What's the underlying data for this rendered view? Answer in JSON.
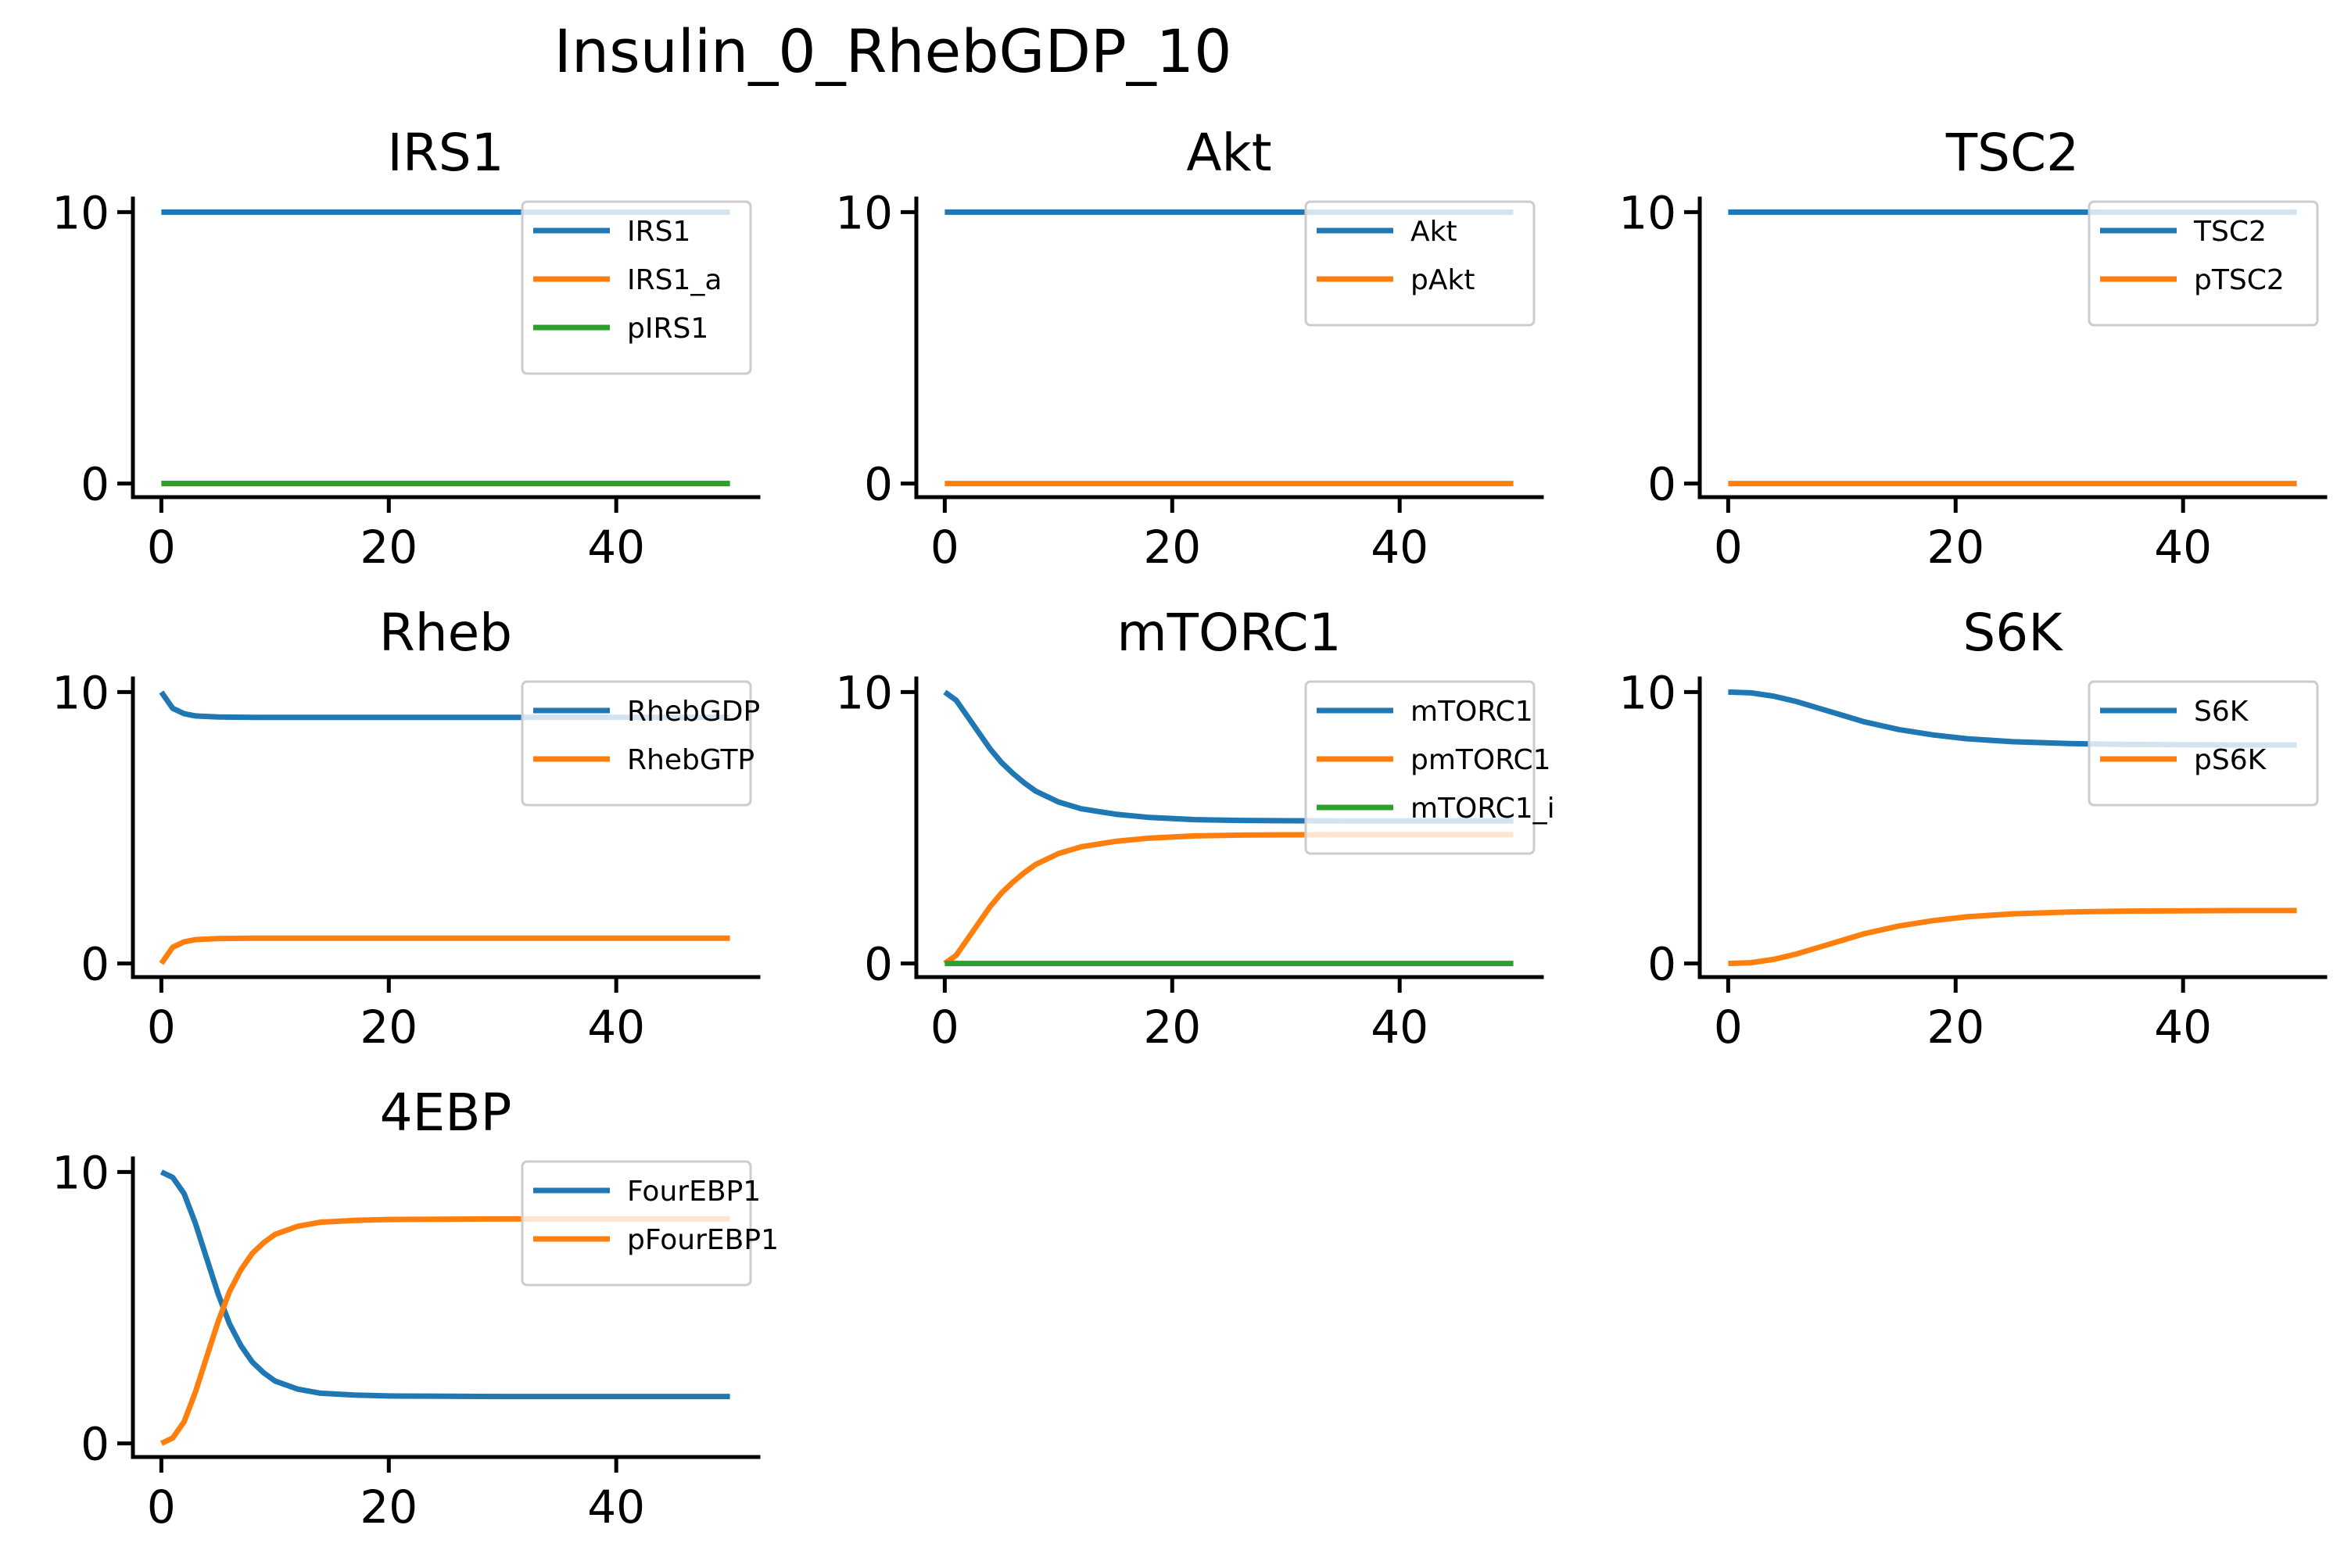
{
  "figure": {
    "title": "Insulin_0_RhebGDP_10"
  },
  "colors": {
    "blue": "#1f77b4",
    "orange": "#ff7f0e",
    "green": "#2ca02c"
  },
  "chart_data": [
    {
      "type": "line",
      "title": "IRS1",
      "xlim": [
        -2.5,
        52.5
      ],
      "ylim": [
        -0.5,
        10.5
      ],
      "xticks": [
        0,
        20,
        40
      ],
      "yticks": [
        0,
        10
      ],
      "legend_position": "upper right",
      "series": [
        {
          "name": "IRS1",
          "color": "#1f77b4",
          "x": [
            0,
            50
          ],
          "y": [
            10,
            10
          ]
        },
        {
          "name": "IRS1_a",
          "color": "#ff7f0e",
          "x": [
            0,
            50
          ],
          "y": [
            0,
            0
          ]
        },
        {
          "name": "pIRS1",
          "color": "#2ca02c",
          "x": [
            0,
            50
          ],
          "y": [
            0,
            0
          ]
        }
      ]
    },
    {
      "type": "line",
      "title": "Akt",
      "xlim": [
        -2.5,
        52.5
      ],
      "ylim": [
        -0.5,
        10.5
      ],
      "xticks": [
        0,
        20,
        40
      ],
      "yticks": [
        0,
        10
      ],
      "legend_position": "upper right",
      "series": [
        {
          "name": "Akt",
          "color": "#1f77b4",
          "x": [
            0,
            50
          ],
          "y": [
            10,
            10
          ]
        },
        {
          "name": "pAkt",
          "color": "#ff7f0e",
          "x": [
            0,
            50
          ],
          "y": [
            0,
            0
          ]
        }
      ]
    },
    {
      "type": "line",
      "title": "TSC2",
      "xlim": [
        -2.5,
        52.5
      ],
      "ylim": [
        -0.5,
        10.5
      ],
      "xticks": [
        0,
        20,
        40
      ],
      "yticks": [
        0,
        10
      ],
      "legend_position": "upper right",
      "series": [
        {
          "name": "TSC2",
          "color": "#1f77b4",
          "x": [
            0,
            50
          ],
          "y": [
            10,
            10
          ]
        },
        {
          "name": "pTSC2",
          "color": "#ff7f0e",
          "x": [
            0,
            50
          ],
          "y": [
            0,
            0
          ]
        }
      ]
    },
    {
      "type": "line",
      "title": "Rheb",
      "xlim": [
        -2.5,
        52.5
      ],
      "ylim": [
        -0.5,
        10.5
      ],
      "xticks": [
        0,
        20,
        40
      ],
      "yticks": [
        0,
        10
      ],
      "legend_position": "upper right",
      "series": [
        {
          "name": "RhebGDP",
          "color": "#1f77b4",
          "x": [
            0,
            1,
            2,
            3,
            5,
            8,
            50
          ],
          "y": [
            10,
            9.4,
            9.2,
            9.12,
            9.08,
            9.07,
            9.07
          ]
        },
        {
          "name": "RhebGTP",
          "color": "#ff7f0e",
          "x": [
            0,
            1,
            2,
            3,
            5,
            8,
            50
          ],
          "y": [
            0,
            0.6,
            0.8,
            0.88,
            0.92,
            0.93,
            0.93
          ]
        }
      ]
    },
    {
      "type": "line",
      "title": "mTORC1",
      "xlim": [
        -2.5,
        52.5
      ],
      "ylim": [
        -0.5,
        10.5
      ],
      "xticks": [
        0,
        20,
        40
      ],
      "yticks": [
        0,
        10
      ],
      "legend_position": "upper right",
      "series": [
        {
          "name": "mTORC1",
          "color": "#1f77b4",
          "x": [
            0,
            1,
            2,
            3,
            4,
            5,
            6,
            7,
            8,
            10,
            12,
            15,
            18,
            22,
            26,
            30,
            35,
            40,
            50
          ],
          "y": [
            10,
            9.7,
            9.1,
            8.5,
            7.9,
            7.4,
            7.0,
            6.65,
            6.35,
            5.95,
            5.7,
            5.5,
            5.38,
            5.3,
            5.27,
            5.26,
            5.25,
            5.25,
            5.25
          ]
        },
        {
          "name": "pmTORC1",
          "color": "#ff7f0e",
          "x": [
            0,
            1,
            2,
            3,
            4,
            5,
            6,
            7,
            8,
            10,
            12,
            15,
            18,
            22,
            26,
            30,
            35,
            40,
            50
          ],
          "y": [
            0,
            0.3,
            0.9,
            1.5,
            2.1,
            2.6,
            3.0,
            3.35,
            3.65,
            4.05,
            4.3,
            4.5,
            4.62,
            4.7,
            4.73,
            4.74,
            4.75,
            4.75,
            4.75
          ]
        },
        {
          "name": "mTORC1_i",
          "color": "#2ca02c",
          "x": [
            0,
            50
          ],
          "y": [
            0,
            0
          ]
        }
      ]
    },
    {
      "type": "line",
      "title": "S6K",
      "xlim": [
        -2.5,
        52.5
      ],
      "ylim": [
        -0.5,
        10.5
      ],
      "xticks": [
        0,
        20,
        40
      ],
      "yticks": [
        0,
        10
      ],
      "legend_position": "upper right",
      "series": [
        {
          "name": "S6K",
          "color": "#1f77b4",
          "x": [
            0,
            2,
            4,
            6,
            8,
            10,
            12,
            15,
            18,
            21,
            25,
            30,
            35,
            40,
            45,
            50
          ],
          "y": [
            10,
            9.97,
            9.85,
            9.65,
            9.4,
            9.15,
            8.9,
            8.62,
            8.42,
            8.28,
            8.17,
            8.1,
            8.07,
            8.06,
            8.05,
            8.05
          ]
        },
        {
          "name": "pS6K",
          "color": "#ff7f0e",
          "x": [
            0,
            2,
            4,
            6,
            8,
            10,
            12,
            15,
            18,
            21,
            25,
            30,
            35,
            40,
            45,
            50
          ],
          "y": [
            0,
            0.03,
            0.15,
            0.35,
            0.6,
            0.85,
            1.1,
            1.38,
            1.58,
            1.72,
            1.83,
            1.9,
            1.93,
            1.94,
            1.95,
            1.95
          ]
        }
      ]
    },
    {
      "type": "line",
      "title": "4EBP",
      "xlim": [
        -2.5,
        52.5
      ],
      "ylim": [
        -0.5,
        10.5
      ],
      "xticks": [
        0,
        20,
        40
      ],
      "yticks": [
        0,
        10
      ],
      "legend_position": "upper right",
      "series": [
        {
          "name": "FourEBP1",
          "color": "#1f77b4",
          "x": [
            0,
            1,
            2,
            3,
            4,
            5,
            6,
            7,
            8,
            9,
            10,
            12,
            14,
            17,
            20,
            25,
            30,
            40,
            50
          ],
          "y": [
            10,
            9.8,
            9.2,
            8.1,
            6.8,
            5.5,
            4.4,
            3.6,
            3.0,
            2.6,
            2.3,
            2.0,
            1.85,
            1.78,
            1.75,
            1.74,
            1.73,
            1.73,
            1.73
          ]
        },
        {
          "name": "pFourEBP1",
          "color": "#ff7f0e",
          "x": [
            0,
            1,
            2,
            3,
            4,
            5,
            6,
            7,
            8,
            9,
            10,
            12,
            14,
            17,
            20,
            25,
            30,
            40,
            50
          ],
          "y": [
            0,
            0.2,
            0.8,
            1.9,
            3.2,
            4.5,
            5.6,
            6.4,
            7.0,
            7.4,
            7.7,
            8.0,
            8.15,
            8.22,
            8.25,
            8.26,
            8.27,
            8.27,
            8.27
          ]
        }
      ]
    }
  ]
}
